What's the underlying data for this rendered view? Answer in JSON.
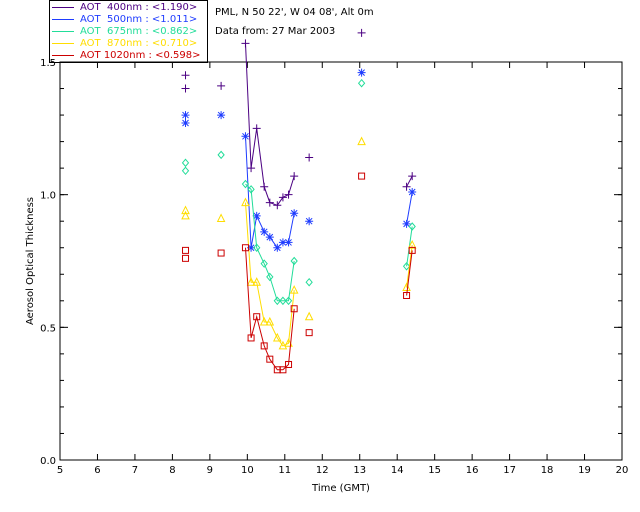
{
  "header": {
    "site_line": "PML, N 50 22', W 04 08', Alt 0m",
    "date_line": "Data from: 27 Mar 2003"
  },
  "legend": [
    {
      "label": "AOT  400nm : <1.190>",
      "color": "#4b0082"
    },
    {
      "label": "AOT  500nm : <1.011>",
      "color": "#1e3cff"
    },
    {
      "label": "AOT  675nm : <0.862>",
      "color": "#22dd99"
    },
    {
      "label": "AOT  870nm : <0.710>",
      "color": "#ffdd00"
    },
    {
      "label": "AOT 1020nm : <0.598>",
      "color": "#cc0000"
    }
  ],
  "chart_data": {
    "type": "line",
    "xlabel": "Time (GMT)",
    "ylabel": "Aerosol Optical Thickness",
    "xlim": [
      5,
      20
    ],
    "ylim": [
      0.0,
      1.5
    ],
    "xticks": [
      5,
      6,
      7,
      8,
      9,
      10,
      11,
      12,
      13,
      14,
      15,
      16,
      17,
      18,
      19,
      20
    ],
    "yticks": [
      "0.0",
      "0.5",
      "1.0",
      "1.5"
    ],
    "grid": false,
    "series": [
      {
        "name": "AOT  400nm : <1.190>",
        "color": "#4b0082",
        "marker": "plus",
        "x": [
          8.35,
          8.35,
          9.3,
          9.95,
          10.1,
          10.25,
          10.45,
          10.6,
          10.8,
          10.95,
          11.1,
          11.25,
          11.65,
          13.05,
          14.25,
          14.4
        ],
        "y": [
          1.45,
          1.4,
          1.41,
          1.57,
          1.1,
          1.25,
          1.03,
          0.97,
          0.96,
          0.99,
          1.0,
          1.07,
          1.14,
          1.61,
          1.03,
          1.07
        ],
        "segments": [
          [
            3,
            11
          ],
          [
            14,
            15
          ]
        ]
      },
      {
        "name": "AOT  500nm : <1.011>",
        "color": "#1e3cff",
        "marker": "star",
        "x": [
          8.35,
          8.35,
          9.3,
          9.95,
          10.1,
          10.25,
          10.45,
          10.6,
          10.8,
          10.95,
          11.1,
          11.25,
          11.65,
          13.05,
          14.25,
          14.4
        ],
        "y": [
          1.3,
          1.27,
          1.3,
          1.22,
          0.8,
          0.92,
          0.86,
          0.84,
          0.8,
          0.82,
          0.82,
          0.93,
          0.9,
          1.46,
          0.89,
          1.01
        ],
        "segments": [
          [
            3,
            11
          ],
          [
            14,
            15
          ]
        ]
      },
      {
        "name": "AOT  675nm : <0.862>",
        "color": "#22dd99",
        "marker": "diamond",
        "x": [
          8.35,
          8.35,
          9.3,
          9.95,
          10.1,
          10.25,
          10.45,
          10.6,
          10.8,
          10.95,
          11.1,
          11.25,
          11.65,
          13.05,
          14.25,
          14.4
        ],
        "y": [
          1.12,
          1.09,
          1.15,
          1.04,
          1.02,
          0.8,
          0.74,
          0.69,
          0.6,
          0.6,
          0.6,
          0.75,
          0.67,
          1.42,
          0.73,
          0.88
        ],
        "segments": [
          [
            3,
            11
          ],
          [
            14,
            15
          ]
        ]
      },
      {
        "name": "AOT  870nm : <0.710>",
        "color": "#ffdd00",
        "marker": "triangle",
        "x": [
          8.35,
          8.35,
          9.3,
          9.95,
          10.1,
          10.25,
          10.45,
          10.6,
          10.8,
          10.95,
          11.1,
          11.25,
          11.65,
          13.05,
          14.25,
          14.4
        ],
        "y": [
          0.94,
          0.92,
          0.91,
          0.97,
          0.67,
          0.67,
          0.52,
          0.52,
          0.46,
          0.43,
          0.44,
          0.64,
          0.54,
          1.2,
          0.65,
          0.81
        ],
        "segments": [
          [
            3,
            11
          ],
          [
            14,
            15
          ]
        ]
      },
      {
        "name": "AOT 1020nm : <0.598>",
        "color": "#cc0000",
        "marker": "square",
        "x": [
          8.35,
          8.35,
          9.3,
          9.95,
          10.1,
          10.25,
          10.45,
          10.6,
          10.8,
          10.95,
          11.1,
          11.25,
          11.65,
          13.05,
          14.25,
          14.4
        ],
        "y": [
          0.79,
          0.76,
          0.78,
          0.8,
          0.46,
          0.54,
          0.43,
          0.38,
          0.34,
          0.34,
          0.36,
          0.57,
          0.48,
          1.07,
          0.62,
          0.79
        ],
        "segments": [
          [
            3,
            11
          ],
          [
            14,
            15
          ]
        ]
      }
    ]
  }
}
